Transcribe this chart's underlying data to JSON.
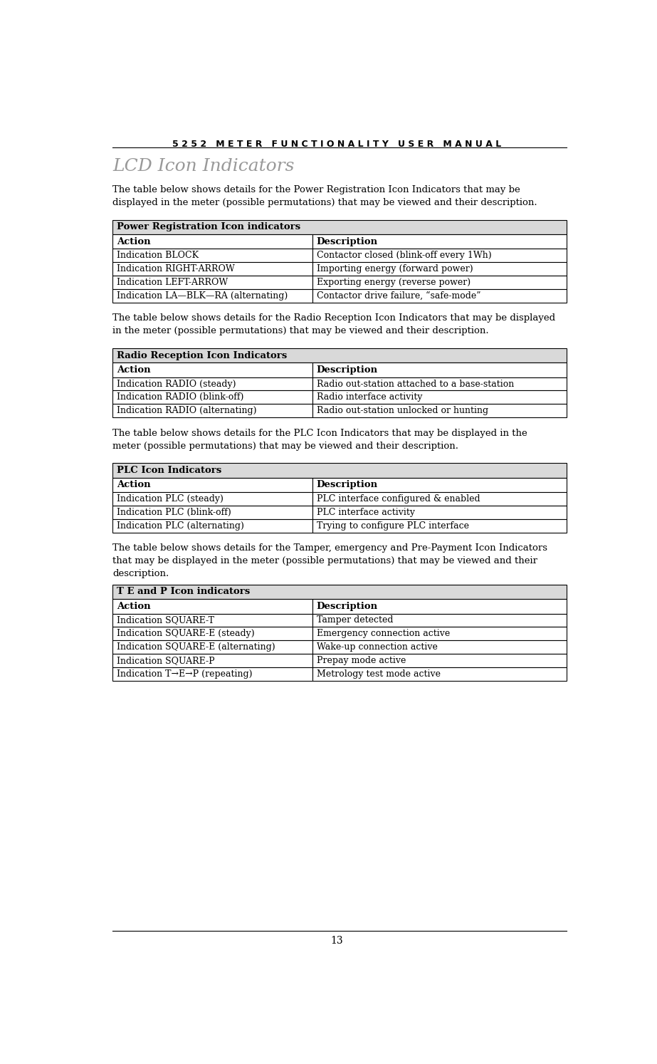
{
  "page_title": "5 2 5 2   M E T E R   F U N C T I O N A L I T Y   U S E R   M A N U A L",
  "page_number": "13",
  "section_title": "LCD Icon Indicators",
  "background_color": "#ffffff",
  "text_color": "#000000",
  "header_bg_color": "#d9d9d9",
  "table_border_color": "#000000",
  "intro_texts": [
    "The table below shows details for the Power Registration Icon Indicators that may be\ndisplayed in the meter (possible permutations) that may be viewed and their description.",
    "The table below shows details for the Radio Reception Icon Indicators that may be displayed\nin the meter (possible permutations) that may be viewed and their description.",
    "The table below shows details for the PLC Icon Indicators that may be displayed in the\nmeter (possible permutations) that may be viewed and their description.",
    "The table below shows details for the Tamper, emergency and Pre-Payment Icon Indicators\nthat may be displayed in the meter (possible permutations) that may be viewed and their\ndescription."
  ],
  "tables": [
    {
      "header": "Power Registration Icon indicators",
      "col_header": [
        "Action",
        "Description"
      ],
      "rows": [
        [
          "Indication BLOCK",
          "Contactor closed (blink-off every 1Wh)"
        ],
        [
          "Indication RIGHT-ARROW",
          "Importing energy (forward power)"
        ],
        [
          "Indication LEFT-ARROW",
          "Exporting energy (reverse power)"
        ],
        [
          "Indication LA—BLK—RA (alternating)",
          "Contactor drive failure, “safe-mode”"
        ]
      ]
    },
    {
      "header": "Radio Reception Icon Indicators",
      "col_header": [
        "Action",
        "Description"
      ],
      "rows": [
        [
          "Indication RADIO (steady)",
          "Radio out-station attached to a base-station"
        ],
        [
          "Indication RADIO (blink-off)",
          "Radio interface activity"
        ],
        [
          "Indication RADIO (alternating)",
          "Radio out-station unlocked or hunting"
        ]
      ]
    },
    {
      "header": "PLC Icon Indicators",
      "col_header": [
        "Action",
        "Description"
      ],
      "rows": [
        [
          "Indication PLC (steady)",
          "PLC interface configured & enabled"
        ],
        [
          "Indication PLC (blink-off)",
          "PLC interface activity"
        ],
        [
          "Indication PLC (alternating)",
          "Trying to configure PLC interface"
        ]
      ]
    },
    {
      "header": "T E and P Icon indicators",
      "col_header": [
        "Action",
        "Description"
      ],
      "rows": [
        [
          "Indication SQUARE-T",
          "Tamper detected"
        ],
        [
          "Indication SQUARE-E (steady)",
          "Emergency connection active"
        ],
        [
          "Indication SQUARE-E (alternating)",
          "Wake-up connection active"
        ],
        [
          "Indication SQUARE-P",
          "Prepay mode active"
        ],
        [
          "Indication T→E→P (repeating)",
          "Metrology test mode active"
        ]
      ]
    }
  ]
}
